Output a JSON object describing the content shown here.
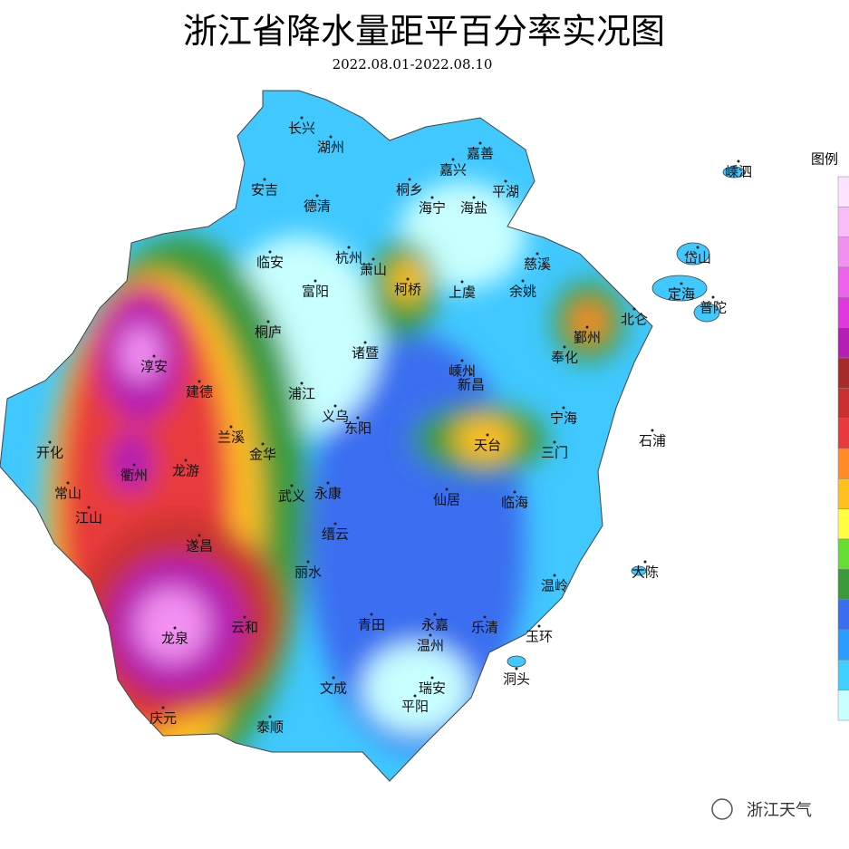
{
  "title": "浙江省降水量距平百分率实况图",
  "subtitle": "2022.08.01-2022.08.10",
  "legend": {
    "title": "图例",
    "colors": [
      "#fde3fd",
      "#f8bdf8",
      "#f391f3",
      "#ec62ec",
      "#de38de",
      "#b41eb4",
      "#a52a2a",
      "#c83030",
      "#e83a3a",
      "#ff8a26",
      "#ffc020",
      "#ffff40",
      "#66dd33",
      "#3a9a3a",
      "#3a6ef0",
      "#2a9cff",
      "#40d0ff",
      "#c8ffff"
    ]
  },
  "cities": [
    "长兴",
    "湖州",
    "嘉善",
    "嘉兴",
    "安吉",
    "桐乡",
    "平湖",
    "德清",
    "海宁",
    "海盐",
    "嵊泗",
    "临安",
    "杭州",
    "萧山",
    "柯桥",
    "上虞",
    "余姚",
    "慈溪",
    "岱山",
    "定海",
    "普陀",
    "富阳",
    "北仑",
    "鄞州",
    "桐庐",
    "诸暨",
    "奉化",
    "淳安",
    "建德",
    "嵊州",
    "新昌",
    "浦江",
    "义乌",
    "东阳",
    "宁海",
    "兰溪",
    "金华",
    "天台",
    "三门",
    "石浦",
    "开化",
    "衢州",
    "龙游",
    "常山",
    "武义",
    "永康",
    "仙居",
    "临海",
    "江山",
    "缙云",
    "遂昌",
    "大陈",
    "温岭",
    "丽水",
    "青田",
    "云和",
    "龙泉",
    "永嘉",
    "温州",
    "乐清",
    "玉环",
    "洞头",
    "文成",
    "瑞安",
    "平阳",
    "庆元",
    "泰顺"
  ],
  "watermark": "浙江天气"
}
